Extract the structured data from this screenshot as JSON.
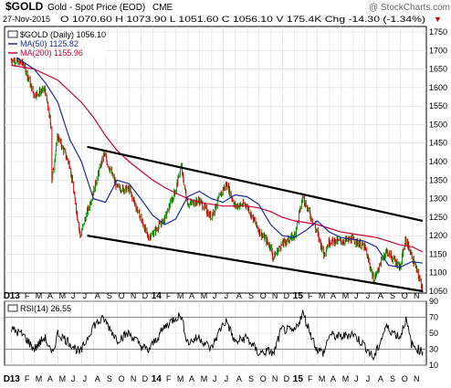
{
  "header": {
    "symbol": "$GOLD",
    "title": "Gold - Spot Price (EOD)",
    "exchange": "CME",
    "watermark": "@ StockCharts.com",
    "date": "27-Nov-2015",
    "quote": "O 1070.60  H 1073.90  L 1051.60  C 1056.10  V 175.4K  Chg -14.30 (-1.34%)",
    "down_marker": "▼"
  },
  "legend": {
    "main": "$GOLD (Daily) 1056.10",
    "ma50": "MA(50) 1125.82",
    "ma200": "MA(200) 1155.96"
  },
  "rsi_legend": "RSI(14) 26.55",
  "colors": {
    "price_up": "#009900",
    "price_down": "#cc0000",
    "ma50": "#1a2a9a",
    "ma200": "#cc0033",
    "rsi_line": "#000000",
    "grid": "#d9d9d9",
    "channel": "#000000"
  },
  "x_axis_labels": [
    "13",
    "F",
    "M",
    "A",
    "M",
    "J",
    "J",
    "A",
    "S",
    "O",
    "N",
    "D",
    "14",
    "F",
    "M",
    "A",
    "M",
    "J",
    "J",
    "A",
    "S",
    "O",
    "N",
    "D",
    "15",
    "F",
    "M",
    "A",
    "M",
    "J",
    "J",
    "A",
    "S",
    "O",
    "N"
  ],
  "x_axis_bold": [
    "13",
    "14",
    "15"
  ],
  "chart_data": [
    {
      "type": "line",
      "title": "$GOLD (Daily)",
      "x_type": "date",
      "x_range": [
        "2012-12-28",
        "2015-11-27"
      ],
      "ylim": [
        1050,
        1750
      ],
      "y_ticks": [
        1050,
        1100,
        1150,
        1200,
        1250,
        1300,
        1350,
        1400,
        1450,
        1500,
        1550,
        1600,
        1650,
        1700,
        1750
      ],
      "series": [
        {
          "name": "$GOLD (Daily)",
          "style": "bars",
          "x": [
            "2012-12-31",
            "2013-01-31",
            "2013-02-28",
            "2013-03-28",
            "2013-04-12",
            "2013-04-15",
            "2013-04-30",
            "2013-05-31",
            "2013-06-27",
            "2013-07-31",
            "2013-08-27",
            "2013-09-30",
            "2013-10-31",
            "2013-11-29",
            "2013-12-19",
            "2013-12-31",
            "2014-01-31",
            "2014-02-28",
            "2014-03-14",
            "2014-03-31",
            "2014-04-30",
            "2014-05-30",
            "2014-06-30",
            "2014-07-10",
            "2014-07-31",
            "2014-08-29",
            "2014-09-30",
            "2014-10-31",
            "2014-11-06",
            "2014-11-28",
            "2014-12-31",
            "2015-01-22",
            "2015-02-27",
            "2015-03-17",
            "2015-03-31",
            "2015-04-30",
            "2015-05-29",
            "2015-06-30",
            "2015-07-24",
            "2015-08-24",
            "2015-09-30",
            "2015-10-14",
            "2015-10-30",
            "2015-11-27"
          ],
          "values": [
            1675,
            1665,
            1580,
            1595,
            1500,
            1350,
            1470,
            1390,
            1200,
            1320,
            1420,
            1330,
            1325,
            1250,
            1195,
            1205,
            1245,
            1325,
            1385,
            1285,
            1295,
            1250,
            1325,
            1340,
            1280,
            1285,
            1215,
            1170,
            1140,
            1175,
            1200,
            1305,
            1210,
            1150,
            1185,
            1185,
            1190,
            1170,
            1080,
            1160,
            1115,
            1190,
            1145,
            1056
          ]
        },
        {
          "name": "MA(50)",
          "x": [
            "2012-12-31",
            "2013-02-28",
            "2013-03-31",
            "2013-04-30",
            "2013-05-31",
            "2013-06-30",
            "2013-07-31",
            "2013-08-31",
            "2013-09-30",
            "2013-10-31",
            "2013-11-30",
            "2013-12-31",
            "2014-01-31",
            "2014-02-28",
            "2014-03-31",
            "2014-04-30",
            "2014-05-31",
            "2014-06-30",
            "2014-07-31",
            "2014-08-31",
            "2014-09-30",
            "2014-10-31",
            "2014-11-30",
            "2014-12-31",
            "2015-01-31",
            "2015-02-28",
            "2015-03-31",
            "2015-04-30",
            "2015-05-31",
            "2015-06-30",
            "2015-07-31",
            "2015-08-31",
            "2015-09-30",
            "2015-10-31",
            "2015-11-27"
          ],
          "values": [
            1690,
            1650,
            1610,
            1560,
            1460,
            1400,
            1300,
            1290,
            1350,
            1340,
            1300,
            1255,
            1230,
            1245,
            1305,
            1320,
            1300,
            1290,
            1310,
            1305,
            1285,
            1230,
            1200,
            1195,
            1215,
            1240,
            1210,
            1195,
            1190,
            1185,
            1170,
            1120,
            1115,
            1130,
            1125.82
          ]
        },
        {
          "name": "MA(200)",
          "x": [
            "2012-12-31",
            "2013-02-28",
            "2013-04-30",
            "2013-06-30",
            "2013-07-31",
            "2013-08-31",
            "2013-09-30",
            "2013-10-31",
            "2013-11-30",
            "2013-12-31",
            "2014-01-31",
            "2014-02-28",
            "2014-03-31",
            "2014-04-30",
            "2014-05-31",
            "2014-06-30",
            "2014-07-31",
            "2014-08-31",
            "2014-09-30",
            "2014-10-31",
            "2014-11-30",
            "2014-12-31",
            "2015-01-31",
            "2015-02-28",
            "2015-03-31",
            "2015-04-30",
            "2015-05-31",
            "2015-06-30",
            "2015-07-31",
            "2015-08-31",
            "2015-09-30",
            "2015-10-31",
            "2015-11-27"
          ],
          "values": [
            1660,
            1650,
            1620,
            1560,
            1520,
            1470,
            1430,
            1400,
            1375,
            1350,
            1330,
            1315,
            1300,
            1290,
            1285,
            1280,
            1280,
            1280,
            1275,
            1265,
            1250,
            1240,
            1235,
            1230,
            1220,
            1210,
            1205,
            1200,
            1195,
            1185,
            1175,
            1170,
            1155.96
          ]
        }
      ],
      "channel_lines": [
        {
          "x": [
            "2013-07-15",
            "2015-11-27"
          ],
          "values": [
            1440,
            1240
          ]
        },
        {
          "x": [
            "2013-07-15",
            "2015-11-27"
          ],
          "values": [
            1200,
            1050
          ]
        }
      ]
    },
    {
      "type": "line",
      "title": "RSI(14)",
      "ylim": [
        10,
        90
      ],
      "y_ticks": [
        10,
        30,
        50,
        70,
        90
      ],
      "x_type": "date",
      "x_range": [
        "2012-12-28",
        "2015-11-27"
      ],
      "series": [
        {
          "name": "RSI(14)",
          "x": [
            "2012-12-31",
            "2013-01-31",
            "2013-02-28",
            "2013-03-28",
            "2013-04-15",
            "2013-04-30",
            "2013-05-31",
            "2013-06-27",
            "2013-07-31",
            "2013-08-27",
            "2013-09-30",
            "2013-10-31",
            "2013-11-29",
            "2013-12-19",
            "2014-01-31",
            "2014-02-28",
            "2014-03-14",
            "2014-03-31",
            "2014-04-30",
            "2014-05-30",
            "2014-06-30",
            "2014-07-10",
            "2014-07-31",
            "2014-08-29",
            "2014-09-30",
            "2014-10-31",
            "2014-11-06",
            "2014-11-28",
            "2014-12-31",
            "2015-01-22",
            "2015-02-27",
            "2015-03-17",
            "2015-03-31",
            "2015-04-30",
            "2015-05-29",
            "2015-06-30",
            "2015-07-24",
            "2015-08-24",
            "2015-09-30",
            "2015-10-14",
            "2015-10-30",
            "2015-11-27"
          ],
          "values": [
            55,
            48,
            30,
            45,
            22,
            50,
            38,
            25,
            60,
            68,
            42,
            50,
            35,
            28,
            58,
            70,
            72,
            38,
            45,
            30,
            62,
            65,
            38,
            45,
            25,
            28,
            22,
            55,
            52,
            75,
            30,
            25,
            48,
            45,
            50,
            35,
            18,
            58,
            45,
            68,
            35,
            26.55
          ]
        }
      ]
    }
  ]
}
